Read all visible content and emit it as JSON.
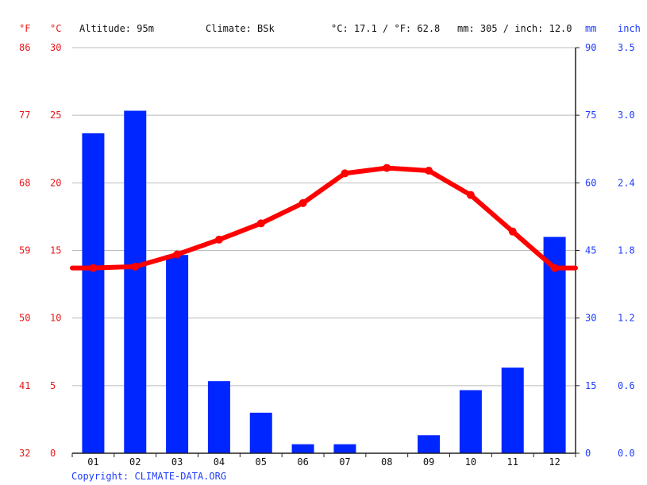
{
  "header": {
    "unit_f": "°F",
    "unit_c": "°C",
    "altitude": "Altitude: 95m",
    "climate": "Climate: BSk",
    "avg_temp": "°C: 17.1 / °F: 62.8",
    "total_precip": "mm: 305 / inch: 12.0",
    "unit_mm": "mm",
    "unit_inch": "inch"
  },
  "axes": {
    "fahrenheit_ticks": [
      "86",
      "77",
      "68",
      "59",
      "50",
      "41",
      "32"
    ],
    "celsius_ticks": [
      "30",
      "25",
      "20",
      "15",
      "10",
      "5",
      "0"
    ],
    "mm_ticks": [
      "90",
      "75",
      "60",
      "45",
      "30",
      "15",
      "0"
    ],
    "inch_ticks": [
      "3.5",
      "3.0",
      "2.4",
      "1.8",
      "1.2",
      "0.6",
      "0.0"
    ]
  },
  "copyright": "Copyright: CLIMATE-DATA.ORG",
  "colors": {
    "temperature": "#ff0000",
    "precipitation": "#0026ff",
    "axis_left": "#e8191b",
    "axis_right": "#1f3cff",
    "grid": "#bbbbbb"
  },
  "chart_data": {
    "type": "bar",
    "categories": [
      "01",
      "02",
      "03",
      "04",
      "05",
      "06",
      "07",
      "08",
      "09",
      "10",
      "11",
      "12"
    ],
    "series": [
      {
        "kind": "bar",
        "axis": "mm",
        "values": [
          71,
          76,
          44,
          16,
          9,
          2,
          2,
          0,
          4,
          14,
          19,
          48
        ],
        "ylim": [
          0,
          90
        ]
      },
      {
        "kind": "line",
        "axis": "celsius",
        "values": [
          13.7,
          13.8,
          14.7,
          15.8,
          17.0,
          18.5,
          20.7,
          21.1,
          20.9,
          19.1,
          16.4,
          13.7
        ],
        "ylim": [
          0,
          30
        ]
      }
    ],
    "grid": true
  }
}
